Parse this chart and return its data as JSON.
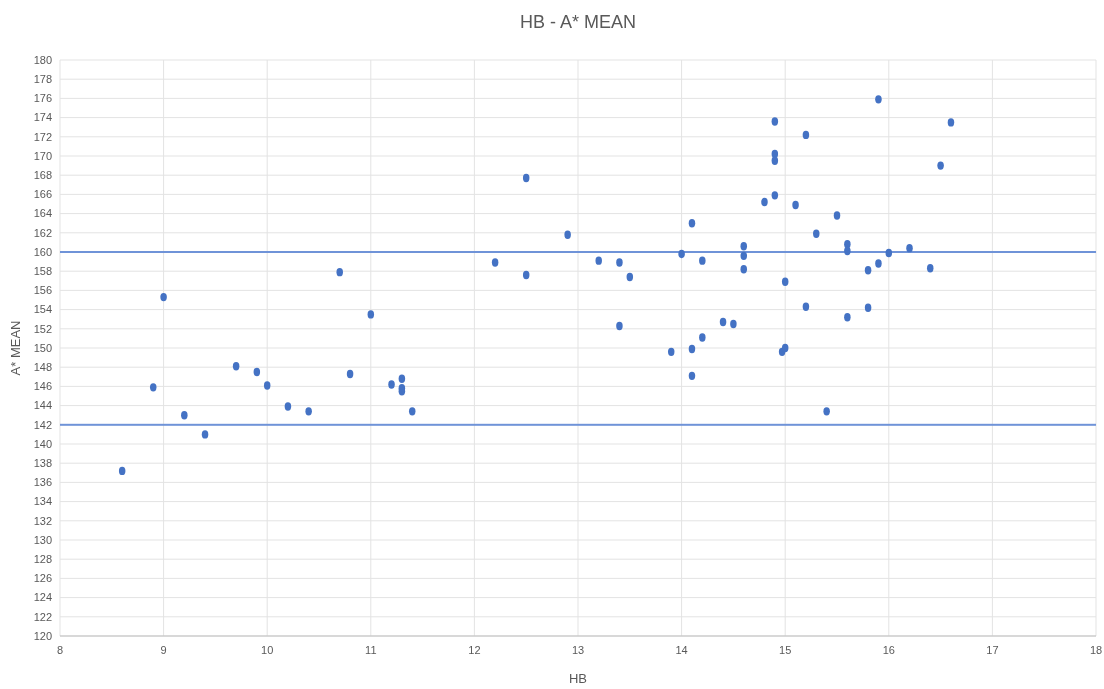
{
  "chart_data": {
    "type": "scatter",
    "title": "HB - A* MEAN",
    "xlabel": "HB",
    "ylabel": "A* MEAN",
    "marker": "circle",
    "grid": true,
    "xlim": [
      8,
      18
    ],
    "xticks": [
      8,
      9,
      10,
      11,
      12,
      13,
      14,
      15,
      16,
      17,
      18
    ],
    "ylim": [
      120,
      180
    ],
    "yticks": [
      120,
      122,
      124,
      126,
      128,
      130,
      132,
      134,
      136,
      138,
      140,
      142,
      144,
      146,
      148,
      150,
      152,
      154,
      156,
      158,
      160,
      162,
      164,
      166,
      168,
      170,
      172,
      174,
      176,
      178,
      180
    ],
    "ref_lines": [
      {
        "axis": "y",
        "value": 160,
        "color": "#6f93d8"
      },
      {
        "axis": "y",
        "value": 142,
        "color": "#6f93d8"
      }
    ],
    "series": [
      {
        "color": "#4472c4",
        "x": [
          8.6,
          8.9,
          9.0,
          9.2,
          9.4,
          9.7,
          9.9,
          10.0,
          10.2,
          10.4,
          10.7,
          10.8,
          11.0,
          11.2,
          11.3,
          11.3,
          11.3,
          11.4,
          12.2,
          12.5,
          12.5,
          12.9,
          13.2,
          13.4,
          13.4,
          13.5,
          13.9,
          14.0,
          14.1,
          14.1,
          14.1,
          14.2,
          14.2,
          14.4,
          14.5,
          14.6,
          14.6,
          14.6,
          14.8,
          14.9,
          14.9,
          14.9,
          14.9,
          15.0,
          14.97,
          15.0,
          15.1,
          15.2,
          15.2,
          15.3,
          15.4,
          15.5,
          15.6,
          15.6,
          15.6,
          15.8,
          15.8,
          15.9,
          15.9,
          16.0,
          16.2,
          16.4,
          16.5,
          16.6
        ],
        "values": [
          137.2,
          145.9,
          155.3,
          143.0,
          141.0,
          148.1,
          147.5,
          146.1,
          143.9,
          143.4,
          157.9,
          147.3,
          153.5,
          146.2,
          146.8,
          145.8,
          145.5,
          143.4,
          158.9,
          167.7,
          157.6,
          161.8,
          159.1,
          158.9,
          152.3,
          157.4,
          149.6,
          159.8,
          163.0,
          149.9,
          147.1,
          159.1,
          151.1,
          152.7,
          152.5,
          160.6,
          159.6,
          158.2,
          165.2,
          173.6,
          170.2,
          169.5,
          165.9,
          156.9,
          149.6,
          150.0,
          164.9,
          172.2,
          154.3,
          161.9,
          143.4,
          163.8,
          160.8,
          160.1,
          153.2,
          158.1,
          154.2,
          175.9,
          158.8,
          159.9,
          160.4,
          158.3,
          169.0,
          173.5
        ]
      }
    ]
  }
}
